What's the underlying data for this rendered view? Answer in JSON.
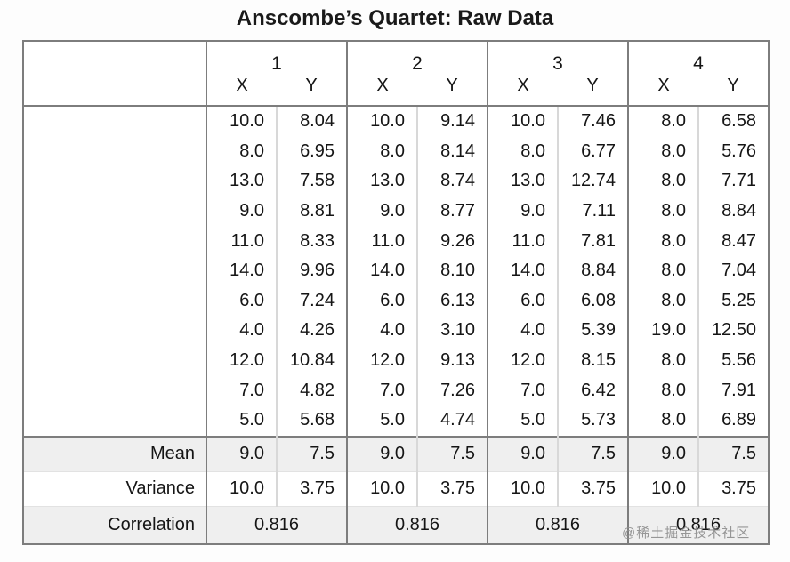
{
  "title": "Anscombe’s Quartet: Raw Data",
  "watermark": "@稀土掘金技术社区",
  "colors": {
    "border_dark": "#7d7d7d",
    "border_light": "#d8d8d8",
    "row_shade": "#efefef",
    "text": "#151515",
    "watermark": "#8f8f8f"
  },
  "chart_data": {
    "type": "table",
    "title": "Anscombe’s Quartet: Raw Data",
    "sub_headers": [
      "X",
      "Y"
    ],
    "summary_labels": [
      "Mean",
      "Variance",
      "Correlation"
    ],
    "groups": [
      {
        "label": "1",
        "x": [
          "10.0",
          "8.0",
          "13.0",
          "9.0",
          "11.0",
          "14.0",
          "6.0",
          "4.0",
          "12.0",
          "7.0",
          "5.0"
        ],
        "y": [
          "8.04",
          "6.95",
          "7.58",
          "8.81",
          "8.33",
          "9.96",
          "7.24",
          "4.26",
          "10.84",
          "4.82",
          "5.68"
        ],
        "mean": [
          "9.0",
          "7.5"
        ],
        "variance": [
          "10.0",
          "3.75"
        ],
        "correlation": "0.816"
      },
      {
        "label": "2",
        "x": [
          "10.0",
          "8.0",
          "13.0",
          "9.0",
          "11.0",
          "14.0",
          "6.0",
          "4.0",
          "12.0",
          "7.0",
          "5.0"
        ],
        "y": [
          "9.14",
          "8.14",
          "8.74",
          "8.77",
          "9.26",
          "8.10",
          "6.13",
          "3.10",
          "9.13",
          "7.26",
          "4.74"
        ],
        "mean": [
          "9.0",
          "7.5"
        ],
        "variance": [
          "10.0",
          "3.75"
        ],
        "correlation": "0.816"
      },
      {
        "label": "3",
        "x": [
          "10.0",
          "8.0",
          "13.0",
          "9.0",
          "11.0",
          "14.0",
          "6.0",
          "4.0",
          "12.0",
          "7.0",
          "5.0"
        ],
        "y": [
          "7.46",
          "6.77",
          "12.74",
          "7.11",
          "7.81",
          "8.84",
          "6.08",
          "5.39",
          "8.15",
          "6.42",
          "5.73"
        ],
        "mean": [
          "9.0",
          "7.5"
        ],
        "variance": [
          "10.0",
          "3.75"
        ],
        "correlation": "0.816"
      },
      {
        "label": "4",
        "x": [
          "8.0",
          "8.0",
          "8.0",
          "8.0",
          "8.0",
          "8.0",
          "8.0",
          "19.0",
          "8.0",
          "8.0",
          "8.0"
        ],
        "y": [
          "6.58",
          "5.76",
          "7.71",
          "8.84",
          "8.47",
          "7.04",
          "5.25",
          "12.50",
          "5.56",
          "7.91",
          "6.89"
        ],
        "mean": [
          "9.0",
          "7.5"
        ],
        "variance": [
          "10.0",
          "3.75"
        ],
        "correlation": "0.816"
      }
    ]
  }
}
